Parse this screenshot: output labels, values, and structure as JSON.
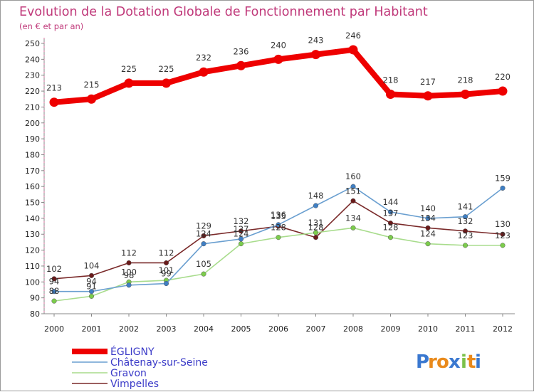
{
  "chart_data": {
    "type": "line",
    "title": "Evolution de la Dotation Globale de Fonctionnement par Habitant",
    "subtitle": "(en € et par an)",
    "xlabel": "",
    "ylabel": "",
    "categories": [
      "2000",
      "2001",
      "2002",
      "2003",
      "2004",
      "2005",
      "2006",
      "2007",
      "2008",
      "2009",
      "2010",
      "2011",
      "2012"
    ],
    "ylim": [
      80,
      250
    ],
    "yticks": [
      80,
      90,
      100,
      110,
      120,
      130,
      140,
      150,
      160,
      170,
      180,
      190,
      200,
      210,
      220,
      230,
      240,
      250
    ],
    "grid": false,
    "legend_position": "bottom-left",
    "series": [
      {
        "name": "ÉGLIGNY",
        "color": "#ee0000",
        "marker_color": "#ee0000",
        "values": [
          213,
          215,
          225,
          225,
          232,
          236,
          240,
          243,
          246,
          218,
          217,
          218,
          220
        ]
      },
      {
        "name": "Châtenay-sur-Seine",
        "color": "#6a9fd0",
        "marker_color": "#3f7fc4",
        "values": [
          94,
          94,
          98,
          99,
          124,
          127,
          136,
          148,
          160,
          144,
          140,
          141,
          159
        ]
      },
      {
        "name": "Gravon",
        "color": "#a8dc8c",
        "marker_color": "#7ccc4c",
        "values": [
          88,
          91,
          100,
          101,
          105,
          124,
          128,
          131,
          134,
          128,
          124,
          123,
          123
        ]
      },
      {
        "name": "Vimpelles",
        "color": "#7a2a2a",
        "marker_color": "#6a1a1a",
        "values": [
          102,
          104,
          112,
          112,
          129,
          132,
          135,
          128,
          151,
          137,
          134,
          132,
          130
        ]
      }
    ],
    "data_labels": [
      {
        "series": 0,
        "labels": [
          "213",
          "215",
          "225",
          "225",
          "232",
          "236",
          "240",
          "243",
          "246",
          "218",
          "217",
          "218",
          "220"
        ]
      },
      {
        "series": 1,
        "labels": [
          "94",
          "94",
          "98",
          "99",
          "124",
          "127",
          "136",
          "148",
          "160",
          "144",
          "140",
          "141",
          "159"
        ]
      },
      {
        "series": 2,
        "labels": [
          "88",
          "91",
          "100",
          "101",
          "105",
          "124",
          "128",
          "131",
          "134",
          "128",
          "124",
          "123",
          "123"
        ]
      },
      {
        "series": 3,
        "labels": [
          "102",
          "104",
          "112",
          "112",
          "129",
          "132",
          "135",
          "128",
          "151",
          "137",
          "134",
          "132",
          "130"
        ]
      }
    ]
  },
  "logo": {
    "text": "Proxiti",
    "letters": [
      "P",
      "r",
      "o",
      "x",
      "i",
      "t",
      "i"
    ],
    "colors": [
      "#3a78d0",
      "#e98a1c",
      "#e98a1c",
      "#3a78d0",
      "#7cc24a",
      "#e98a1c",
      "#3a78d0"
    ]
  }
}
